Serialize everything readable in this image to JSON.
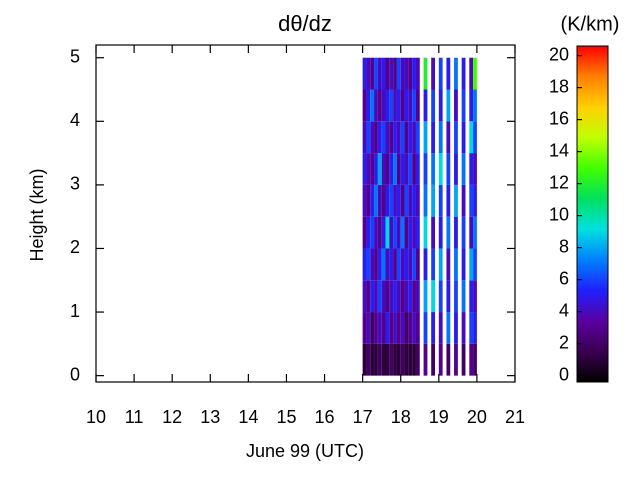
{
  "chart_data": {
    "type": "heatmap",
    "title": "dθ/dz",
    "xlabel": "June 99 (UTC)",
    "ylabel": "Height (km)",
    "colorbar_label": "(K/km)",
    "xlim": [
      10,
      21
    ],
    "xticks": [
      10,
      11,
      12,
      13,
      14,
      15,
      16,
      17,
      18,
      19,
      20,
      21
    ],
    "ylim": [
      -0.1,
      5.2
    ],
    "yticks": [
      0,
      1,
      2,
      3,
      4,
      5
    ],
    "clim": [
      -0.4,
      20.6
    ],
    "cticks": [
      0,
      2,
      4,
      6,
      8,
      10,
      12,
      14,
      16,
      18,
      20
    ],
    "colorscale": [
      "#000000",
      "#3a0050",
      "#5a00a0",
      "#2020ff",
      "#0080ff",
      "#00e0e0",
      "#00e060",
      "#40ff00",
      "#c0ff00",
      "#ffd000",
      "#ff8000",
      "#ff0000"
    ],
    "x": [
      17.05,
      17.15,
      17.25,
      17.35,
      17.45,
      17.55,
      17.65,
      17.75,
      17.85,
      17.95,
      18.05,
      18.15,
      18.25,
      18.35,
      18.45,
      18.65,
      18.85,
      19.05,
      19.25,
      19.45,
      19.65,
      19.85,
      19.95
    ],
    "y": [
      0.25,
      0.75,
      1.25,
      1.75,
      2.25,
      2.75,
      3.25,
      3.75,
      4.25,
      4.75
    ],
    "z": [
      [
        1,
        3,
        4,
        5,
        3,
        4,
        5,
        4,
        3,
        5
      ],
      [
        2,
        4,
        3,
        6,
        5,
        3,
        4,
        6,
        5,
        4
      ],
      [
        1,
        2,
        5,
        4,
        6,
        5,
        3,
        4,
        7,
        3
      ],
      [
        1,
        3,
        4,
        3,
        4,
        7,
        5,
        3,
        4,
        6
      ],
      [
        2,
        4,
        6,
        5,
        3,
        4,
        8,
        5,
        3,
        4
      ],
      [
        1,
        3,
        4,
        7,
        5,
        3,
        4,
        6,
        4,
        5
      ],
      [
        1,
        5,
        3,
        4,
        9,
        5,
        3,
        4,
        5,
        3
      ],
      [
        2,
        3,
        4,
        5,
        4,
        6,
        5,
        3,
        6,
        4
      ],
      [
        1,
        4,
        5,
        3,
        6,
        4,
        7,
        5,
        4,
        3
      ],
      [
        1,
        3,
        4,
        6,
        4,
        5,
        3,
        4,
        5,
        6
      ],
      [
        2,
        4,
        3,
        4,
        7,
        3,
        5,
        6,
        3,
        4
      ],
      [
        1,
        2,
        4,
        5,
        3,
        6,
        4,
        3,
        5,
        4
      ],
      [
        1,
        3,
        5,
        4,
        5,
        4,
        6,
        5,
        4,
        3
      ],
      [
        1,
        4,
        3,
        6,
        4,
        5,
        3,
        4,
        6,
        5
      ],
      [
        2,
        3,
        4,
        3,
        5,
        4,
        5,
        6,
        3,
        4
      ],
      [
        3,
        6,
        8,
        5,
        9,
        7,
        6,
        8,
        5,
        12
      ],
      [
        2,
        5,
        9,
        6,
        4,
        8,
        7,
        5,
        6,
        4
      ],
      [
        3,
        4,
        6,
        8,
        5,
        6,
        9,
        7,
        5,
        6
      ],
      [
        2,
        7,
        5,
        4,
        7,
        5,
        6,
        4,
        8,
        5
      ],
      [
        3,
        5,
        6,
        7,
        5,
        8,
        5,
        6,
        4,
        7
      ],
      [
        2,
        4,
        7,
        5,
        6,
        4,
        7,
        5,
        6,
        5
      ],
      [
        3,
        6,
        5,
        8,
        4,
        6,
        5,
        9,
        5,
        4
      ],
      [
        2,
        5,
        4,
        6,
        7,
        5,
        4,
        6,
        7,
        13
      ]
    ]
  }
}
